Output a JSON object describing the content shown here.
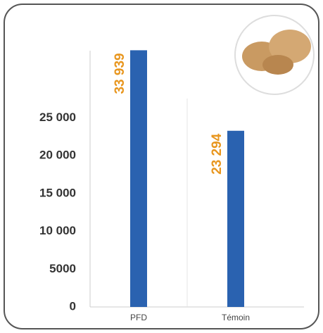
{
  "chart_data": {
    "type": "bar",
    "categories": [
      "PFD",
      "Témoin"
    ],
    "values": [
      33939,
      23294
    ],
    "value_labels": [
      "33 939",
      "23 294"
    ],
    "color": "#2a62b0",
    "label_color": "#e8961e",
    "ylim": [
      0,
      35000
    ],
    "yticks": [
      0,
      5000,
      {
        "value": 10000,
        "label": "10 000"
      },
      {
        "value": 15000,
        "label": "15 000"
      },
      {
        "value": 20000,
        "label": "20 000"
      },
      {
        "value": 25000,
        "label": "25 000"
      }
    ]
  }
}
